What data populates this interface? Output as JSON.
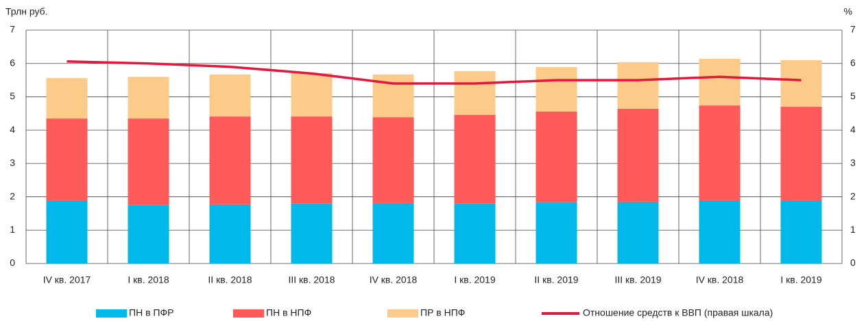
{
  "chart_data": {
    "type": "bar",
    "stacked": true,
    "y_label": "Трлн руб.",
    "y2_label": "%",
    "categories": [
      "IV кв. 2017",
      "I кв. 2018",
      "II кв. 2018",
      "III кв. 2018",
      "IV кв. 2018",
      "I кв. 2019",
      "II кв. 2019",
      "III кв. 2019",
      "IV кв. 2018",
      "I кв. 2019"
    ],
    "series": [
      {
        "name": "ПН в ПФР",
        "color": "#00b9eb",
        "type": "bar",
        "values": [
          1.89,
          1.75,
          1.77,
          1.79,
          1.81,
          1.79,
          1.83,
          1.85,
          1.89,
          1.89
        ]
      },
      {
        "name": "ПН в НПФ",
        "color": "#ff5a5a",
        "type": "bar",
        "values": [
          2.46,
          2.6,
          2.64,
          2.62,
          2.58,
          2.67,
          2.73,
          2.79,
          2.85,
          2.81
        ]
      },
      {
        "name": "ПР в НПФ",
        "color": "#fccb8a",
        "type": "bar",
        "values": [
          1.21,
          1.25,
          1.26,
          1.3,
          1.28,
          1.31,
          1.33,
          1.4,
          1.4,
          1.4
        ]
      },
      {
        "name": "Отношение средств к ВВП (правая шкала)",
        "color": "#e4173e",
        "type": "line",
        "axis": "y2",
        "values": [
          6.06,
          6.0,
          5.9,
          5.7,
          5.4,
          5.4,
          5.5,
          5.5,
          5.6,
          5.5
        ]
      }
    ],
    "ylim": [
      0,
      7
    ],
    "yticks": [
      0,
      1,
      2,
      3,
      4,
      5,
      6,
      7
    ],
    "y2lim": [
      0,
      7
    ],
    "y2ticks": [
      0,
      1,
      2,
      3,
      4,
      5,
      6,
      7
    ],
    "grid": true,
    "legend": "bottom"
  }
}
